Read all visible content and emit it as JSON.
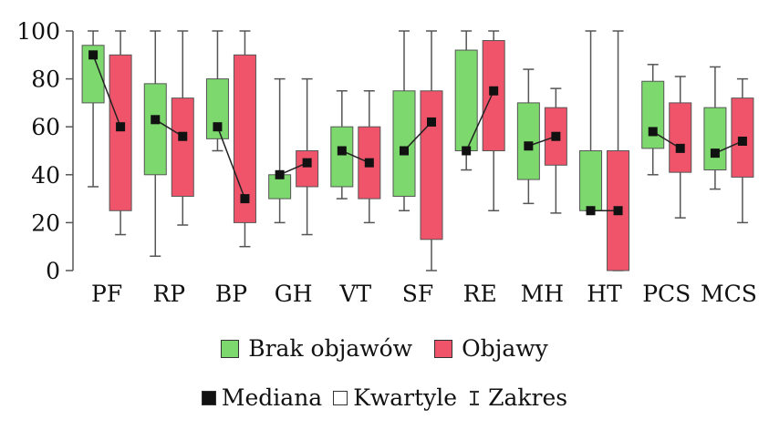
{
  "chart_data": {
    "type": "box",
    "categories": [
      "PF",
      "RP",
      "BP",
      "GH",
      "VT",
      "SF",
      "RE",
      "MH",
      "HT",
      "PCS",
      "MCS"
    ],
    "ylim": [
      0,
      100
    ],
    "yticks": [
      "0",
      "20",
      "40",
      "60",
      "80",
      "100"
    ],
    "grid": false,
    "series": [
      {
        "name": "Brak objawów",
        "color": "#7dd96e",
        "min": [
          35,
          6,
          50,
          20,
          30,
          25,
          42,
          28,
          25,
          40,
          34
        ],
        "q1": [
          70,
          40,
          55,
          30,
          35,
          31,
          50,
          38,
          25,
          51,
          42
        ],
        "median": [
          90,
          63,
          60,
          40,
          50,
          50,
          50,
          52,
          25,
          58,
          49
        ],
        "q3": [
          94,
          78,
          80,
          40,
          60,
          75,
          92,
          70,
          50,
          79,
          68
        ],
        "max": [
          100,
          100,
          100,
          80,
          75,
          100,
          100,
          84,
          100,
          86,
          85
        ]
      },
      {
        "name": "Objawy",
        "color": "#f0546a",
        "min": [
          15,
          19,
          10,
          15,
          20,
          0,
          25,
          24,
          0,
          22,
          20
        ],
        "q1": [
          25,
          31,
          20,
          35,
          30,
          13,
          50,
          44,
          0,
          41,
          39
        ],
        "median": [
          60,
          56,
          30,
          45,
          45,
          62,
          75,
          56,
          25,
          51,
          54
        ],
        "q3": [
          90,
          72,
          90,
          50,
          60,
          75,
          96,
          68,
          50,
          70,
          72
        ],
        "max": [
          100,
          100,
          100,
          80,
          75,
          100,
          100,
          76,
          100,
          81,
          80
        ]
      }
    ],
    "legend": {
      "row1": [
        "Brak objawów",
        "Objawy"
      ],
      "row2": [
        "Mediana",
        "Kwartyle",
        "Zakres"
      ]
    }
  }
}
